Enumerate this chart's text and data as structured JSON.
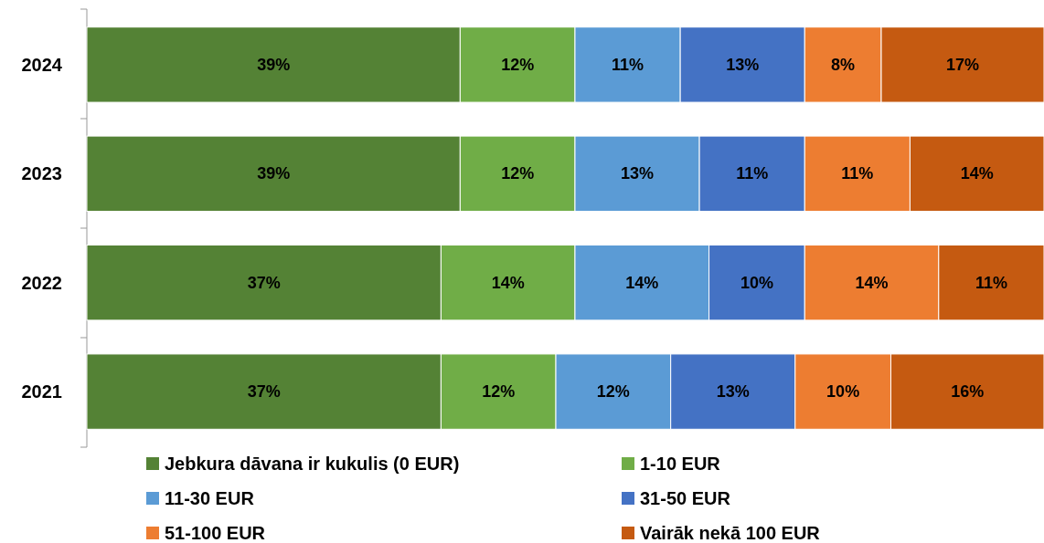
{
  "chart_data": {
    "type": "bar",
    "orientation": "horizontal",
    "stacked": true,
    "legend": "bottom",
    "categories": [
      "2024",
      "2023",
      "2022",
      "2021"
    ],
    "series": [
      {
        "name": "Jebkura dāvana ir kukulis (0 EUR)",
        "color": "#548235",
        "values": [
          39,
          39,
          37,
          37
        ],
        "value_labels": [
          "39%",
          "39%",
          "37%",
          "37%"
        ]
      },
      {
        "name": "1-10 EUR",
        "color": "#70ad47",
        "values": [
          12,
          12,
          14,
          12
        ],
        "value_labels": [
          "12%",
          "12%",
          "14%",
          "12%"
        ]
      },
      {
        "name": "11-30 EUR",
        "color": "#5b9bd5",
        "values": [
          11,
          13,
          14,
          12
        ],
        "value_labels": [
          "11%",
          "13%",
          "14%",
          "12%"
        ]
      },
      {
        "name": "31-50 EUR",
        "color": "#4472c4",
        "values": [
          13,
          11,
          10,
          13
        ],
        "value_labels": [
          "13%",
          "11%",
          "10%",
          "13%"
        ]
      },
      {
        "name": "51-100 EUR",
        "color": "#ed7d31",
        "values": [
          8,
          11,
          14,
          10
        ],
        "value_labels": [
          "8%",
          "11%",
          "14%",
          "10%"
        ]
      },
      {
        "name": "Vairāk nekā 100 EUR",
        "color": "#c55a11",
        "values": [
          17,
          14,
          11,
          16
        ],
        "value_labels": [
          "17%",
          "14%",
          "11%",
          "16%"
        ]
      }
    ]
  }
}
